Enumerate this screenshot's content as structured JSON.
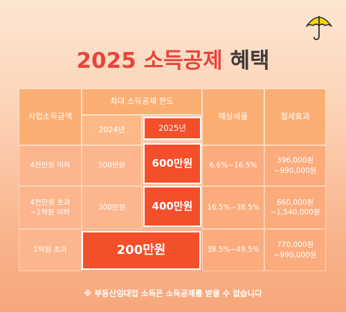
{
  "title": {
    "year": "2025",
    "highlight": "소득공제",
    "rest": "혜택"
  },
  "table": {
    "headers": {
      "income": "사업소득금액",
      "max_limit": "최대 소득공제 한도",
      "year_2024": "2024년",
      "year_2025": "2025년",
      "tax_rate": "예상세율",
      "saving": "절세효과"
    },
    "rows": [
      {
        "income": "4천만원 이하",
        "limit_2024": "500만원",
        "limit_2025": "600만원",
        "tax_rate": "6.6%~16.5%",
        "saving_1": "396,000원",
        "saving_2": "~990,000원"
      },
      {
        "income_1": "4천만원 초과",
        "income_2": "~1억원 이하",
        "limit_2024": "300만원",
        "limit_2025": "400만원",
        "tax_rate": "16.5%~38.5%",
        "saving_1": "660,000원",
        "saving_2": "~1,540,000원"
      },
      {
        "income": "1억원 초과",
        "limit_merged": "200만원",
        "tax_rate": "38.5%~49.5%",
        "saving_1": "770,000원",
        "saving_2": "~990,000원"
      }
    ]
  },
  "footnote": "※ 부동산임대업 소득은 소득공제를 받을 수 없습니다",
  "icons": {
    "logo": "umbrella-icon"
  },
  "colors": {
    "accent": "#f34f2b",
    "title_red": "#e8443b",
    "umbrella": "#fcd400"
  }
}
